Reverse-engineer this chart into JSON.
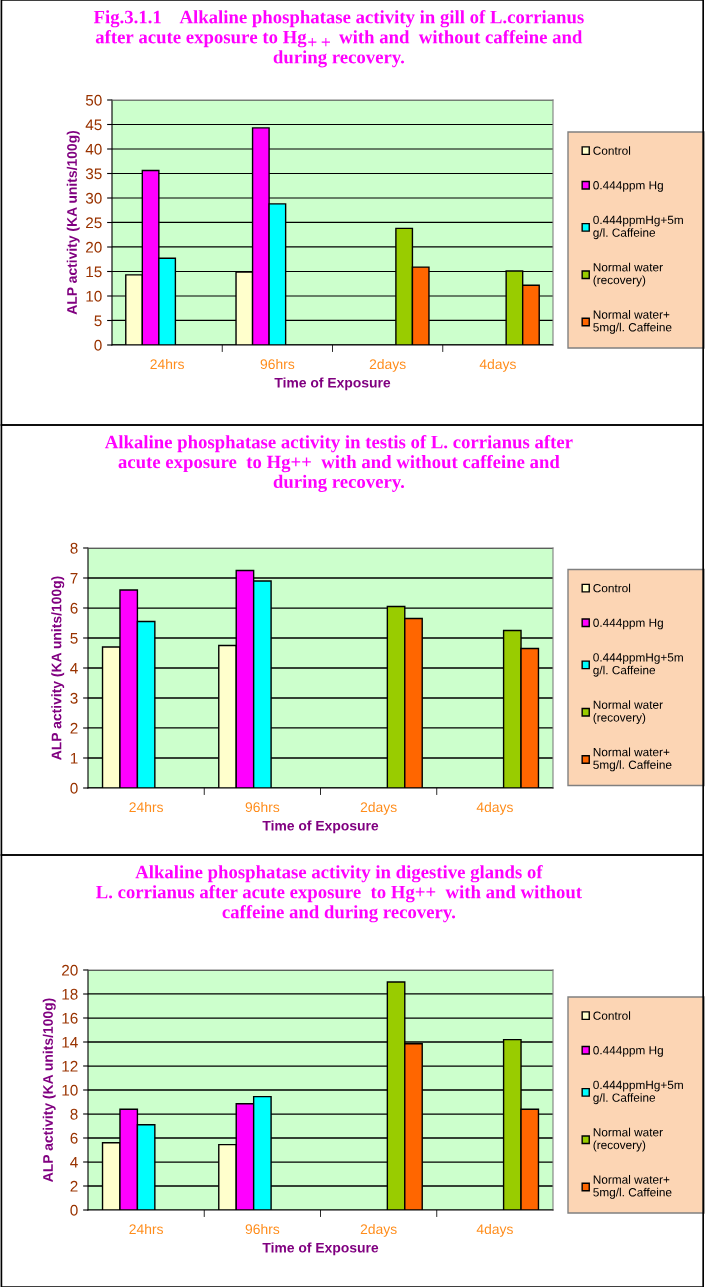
{
  "chart_data": [
    {
      "type": "bar",
      "title": "Fig.3.1.1    Alkaline phosphatase activity in gill of L.corrianus\nafter acute exposure to Hg$_{++}$ with and  without caffeine and\nduring recovery.",
      "xlabel": "Time of Exposure",
      "ylabel": "ALP activity (KA units/100g)",
      "categories": [
        "24hrs",
        "96hrs",
        "2days",
        "4days"
      ],
      "ylim": [
        0,
        50
      ],
      "yticks": [
        0,
        5,
        10,
        15,
        20,
        25,
        30,
        35,
        40,
        45,
        50
      ],
      "grid": "y",
      "legend": "right",
      "series": [
        {
          "name": "Control",
          "color": "#ffffcc",
          "values": [
            14.3,
            14.9,
            null,
            null
          ]
        },
        {
          "name": "0.444ppm Hg",
          "color": "#ff00ff",
          "values": [
            35.6,
            44.3,
            null,
            null
          ]
        },
        {
          "name": "0.444ppmHg+5m\ng/l. Caffeine",
          "color": "#00ffff",
          "values": [
            17.7,
            28.8,
            null,
            null
          ]
        },
        {
          "name": "Normal water\n(recovery)",
          "color": "#99cc00",
          "values": [
            null,
            null,
            23.8,
            15.1
          ]
        },
        {
          "name": "Normal water+\n5mg/l. Caffeine",
          "color": "#ff6600",
          "values": [
            null,
            null,
            15.9,
            12.2
          ]
        }
      ]
    },
    {
      "type": "bar",
      "title": "Alkaline phosphatase activity in testis of L. corrianus after\nacute exposure  to Hg++  with and without caffeine and\nduring recovery.",
      "xlabel": "Time of Exposure",
      "ylabel": "ALP activity (KA units/100g)",
      "categories": [
        "24hrs",
        "96hrs",
        "2days",
        "4days"
      ],
      "ylim": [
        0,
        8
      ],
      "yticks": [
        0,
        1,
        2,
        3,
        4,
        5,
        6,
        7,
        8
      ],
      "grid": "y",
      "legend": "right",
      "series": [
        {
          "name": "Control",
          "color": "#ffffcc",
          "values": [
            4.7,
            4.75,
            null,
            null
          ]
        },
        {
          "name": "0.444ppm Hg",
          "color": "#ff00ff",
          "values": [
            6.6,
            7.25,
            null,
            null
          ]
        },
        {
          "name": "0.444ppmHg+5m\ng/l. Caffeine",
          "color": "#00ffff",
          "values": [
            5.55,
            6.9,
            null,
            null
          ]
        },
        {
          "name": "Normal water\n(recovery)",
          "color": "#99cc00",
          "values": [
            null,
            null,
            6.05,
            5.25
          ]
        },
        {
          "name": "Normal water+\n5mg/l. Caffeine",
          "color": "#ff6600",
          "values": [
            null,
            null,
            5.65,
            4.65
          ]
        }
      ]
    },
    {
      "type": "bar",
      "title": "Alkaline phosphatase activity in digestive glands of\nL. corrianus after acute exposure  to Hg++  with and without\ncaffeine and during recovery.",
      "xlabel": "Time of Exposure",
      "ylabel": "ALP activity (KA units/100g)",
      "categories": [
        "24hrs",
        "96hrs",
        "2days",
        "4days"
      ],
      "ylim": [
        0,
        20
      ],
      "yticks": [
        0,
        2,
        4,
        6,
        8,
        10,
        12,
        14,
        16,
        18,
        20
      ],
      "grid": "y",
      "legend": "right",
      "series": [
        {
          "name": "Control",
          "color": "#ffffcc",
          "values": [
            5.6,
            5.45,
            null,
            null
          ]
        },
        {
          "name": "0.444ppm Hg",
          "color": "#ff00ff",
          "values": [
            8.4,
            8.85,
            null,
            null
          ]
        },
        {
          "name": "0.444ppmHg+5m\ng/l. Caffeine",
          "color": "#00ffff",
          "values": [
            7.1,
            9.45,
            null,
            null
          ]
        },
        {
          "name": "Normal water\n(recovery)",
          "color": "#99cc00",
          "values": [
            null,
            null,
            19.0,
            14.2
          ]
        },
        {
          "name": "Normal water+\n5mg/l. Caffeine",
          "color": "#ff6600",
          "values": [
            null,
            null,
            13.85,
            8.4
          ]
        }
      ]
    }
  ]
}
